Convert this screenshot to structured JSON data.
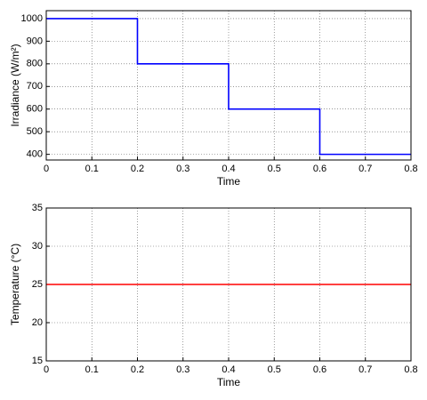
{
  "chart_data": [
    {
      "type": "line",
      "xlabel": "Time",
      "ylabel": "Irradiance (W/m²)",
      "x": [
        0,
        0.2,
        0.2,
        0.4,
        0.4,
        0.6,
        0.6,
        0.8
      ],
      "series": [
        {
          "color": "#0000ff",
          "values": [
            1000,
            1000,
            800,
            800,
            600,
            600,
            400,
            400
          ]
        }
      ],
      "xlim": [
        0,
        0.8
      ],
      "xticks": [
        0,
        0.1,
        0.2,
        0.3,
        0.4,
        0.5,
        0.6,
        0.7,
        0.8
      ],
      "ylim": [
        375,
        1035
      ],
      "yticks": [
        400,
        500,
        600,
        700,
        800,
        900,
        1000
      ],
      "grid": true
    },
    {
      "type": "line",
      "xlabel": "Time",
      "ylabel": "Temperature (°C)",
      "x": [
        0,
        0.8
      ],
      "series": [
        {
          "color": "#ff0000",
          "values": [
            25,
            25
          ]
        }
      ],
      "xlim": [
        0,
        0.8
      ],
      "xticks": [
        0,
        0.1,
        0.2,
        0.3,
        0.4,
        0.5,
        0.6,
        0.7,
        0.8
      ],
      "ylim": [
        15,
        35
      ],
      "yticks": [
        15,
        20,
        25,
        30,
        35
      ],
      "grid": true
    }
  ]
}
